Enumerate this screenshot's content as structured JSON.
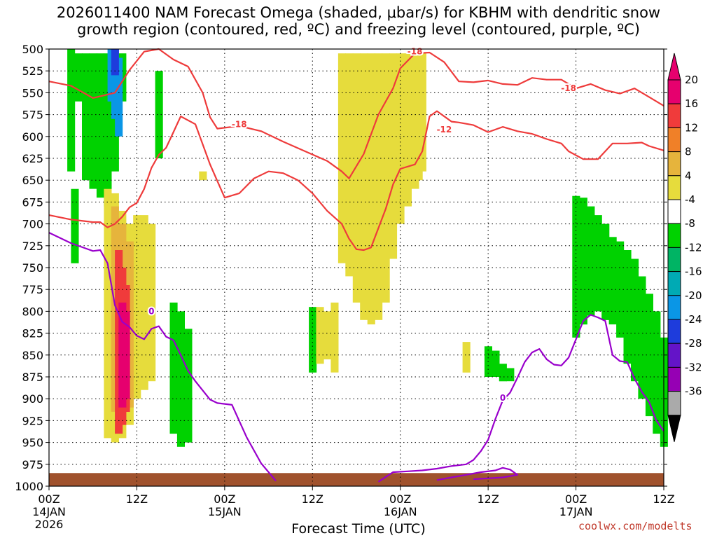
{
  "chart_data": {
    "type": "contour",
    "title_line1": "2026011400 NAM Forecast Omega (shaded, μbar/s) for KBHM with dendritic snow",
    "title_line2": "growth region (contoured, red, ºC) and freezing level (contoured, purple, ºC)",
    "xlabel": "Forecast Time (UTC)",
    "credit": "coolwx.com/modelts",
    "xlim": [
      0,
      84
    ],
    "ylim": [
      500,
      1000
    ],
    "y_ticks": [
      500,
      525,
      550,
      575,
      600,
      625,
      650,
      675,
      700,
      725,
      750,
      775,
      800,
      825,
      850,
      875,
      900,
      925,
      950,
      975,
      1000
    ],
    "x_ticks": [
      {
        "h": 0,
        "line1": "00Z",
        "line2": "14JAN",
        "line3": "2026"
      },
      {
        "h": 12,
        "line1": "12Z",
        "line2": "",
        "line3": ""
      },
      {
        "h": 24,
        "line1": "00Z",
        "line2": "15JAN",
        "line3": ""
      },
      {
        "h": 36,
        "line1": "12Z",
        "line2": "",
        "line3": ""
      },
      {
        "h": 48,
        "line1": "00Z",
        "line2": "16JAN",
        "line3": ""
      },
      {
        "h": 60,
        "line1": "12Z",
        "line2": "",
        "line3": ""
      },
      {
        "h": 72,
        "line1": "00Z",
        "line2": "17JAN",
        "line3": ""
      },
      {
        "h": 84,
        "line1": "12Z",
        "line2": "",
        "line3": ""
      }
    ],
    "colorbar": {
      "labels": [
        "20",
        "16",
        "12",
        "8",
        "4",
        "-4",
        "-8",
        "-12",
        "-16",
        "-20",
        "-24",
        "-28",
        "-32",
        "-36"
      ],
      "colors": {
        "c20": "#e6006e",
        "c16": "#f03b3b",
        "c12": "#f08028",
        "c8": "#e6b43c",
        "c4": "#e6dc3c",
        "c0": "#ffffff",
        "n4": "#00d200",
        "n8": "#00b464",
        "n12": "#00aab4",
        "n16": "#0a96e6",
        "n20": "#1e3cdc",
        "n24": "#6414c8",
        "n28": "#9600b4",
        "n32": "#aaaaaa",
        "n36": "#000000"
      }
    },
    "series": [
      {
        "name": "-18 C",
        "color": "#ee3b3b",
        "label": "-18",
        "points": [
          [
            0,
            537
          ],
          [
            3,
            542
          ],
          [
            6,
            556
          ],
          [
            9,
            550
          ],
          [
            11,
            524
          ],
          [
            13,
            503
          ],
          [
            15,
            500
          ],
          [
            17,
            512
          ],
          [
            19,
            520
          ],
          [
            21,
            550
          ],
          [
            22,
            578
          ],
          [
            23,
            591
          ],
          [
            26,
            588
          ],
          [
            29,
            594
          ],
          [
            32,
            606
          ],
          [
            35,
            617
          ],
          [
            38,
            628
          ],
          [
            40,
            640
          ],
          [
            41,
            648
          ],
          [
            43,
            620
          ],
          [
            45,
            575
          ],
          [
            47,
            545
          ],
          [
            48,
            522
          ],
          [
            50,
            505
          ],
          [
            52,
            504
          ],
          [
            54,
            515
          ],
          [
            56,
            537
          ],
          [
            58,
            538
          ],
          [
            60,
            536
          ],
          [
            62,
            540
          ],
          [
            64,
            541
          ],
          [
            66,
            533
          ],
          [
            68,
            535
          ],
          [
            70,
            535
          ],
          [
            72,
            545
          ],
          [
            74,
            540
          ],
          [
            76,
            547
          ],
          [
            78,
            551
          ],
          [
            80,
            545
          ],
          [
            82,
            555
          ],
          [
            84,
            565
          ]
        ],
        "label_at": [
          [
            26,
            586
          ],
          [
            50,
            503
          ],
          [
            71,
            545
          ]
        ]
      },
      {
        "name": "-12 C",
        "color": "#ee3b3b",
        "label": "-12",
        "points": [
          [
            0,
            690
          ],
          [
            3,
            695
          ],
          [
            6,
            698
          ],
          [
            7,
            698
          ],
          [
            8,
            704
          ],
          [
            9,
            700
          ],
          [
            10,
            692
          ],
          [
            11,
            681
          ],
          [
            12,
            676
          ],
          [
            13,
            660
          ],
          [
            14,
            636
          ],
          [
            15,
            621
          ],
          [
            16,
            613
          ],
          [
            17,
            595
          ],
          [
            18,
            577
          ],
          [
            20,
            586
          ],
          [
            22,
            632
          ],
          [
            23,
            651
          ],
          [
            24,
            670
          ],
          [
            26,
            665
          ],
          [
            28,
            648
          ],
          [
            30,
            640
          ],
          [
            32,
            642
          ],
          [
            34,
            650
          ],
          [
            36,
            665
          ],
          [
            38,
            685
          ],
          [
            40,
            700
          ],
          [
            41,
            717
          ],
          [
            42,
            729
          ],
          [
            43,
            730
          ],
          [
            44,
            727
          ],
          [
            46,
            683
          ],
          [
            47,
            655
          ],
          [
            48,
            637
          ],
          [
            50,
            632
          ],
          [
            51,
            617
          ],
          [
            52,
            577
          ],
          [
            53,
            571
          ],
          [
            55,
            583
          ],
          [
            56,
            584
          ],
          [
            58,
            587
          ],
          [
            60,
            595
          ],
          [
            62,
            589
          ],
          [
            64,
            594
          ],
          [
            66,
            597
          ],
          [
            68,
            603
          ],
          [
            70,
            608
          ],
          [
            71,
            617
          ],
          [
            73,
            626
          ],
          [
            75,
            626
          ],
          [
            77,
            608
          ],
          [
            79,
            608
          ],
          [
            81,
            607
          ],
          [
            82,
            611
          ],
          [
            84,
            616
          ]
        ],
        "label_at": [
          [
            54,
            592
          ]
        ]
      },
      {
        "name": "0 C",
        "color": "#9900cc",
        "label": "0",
        "points": [
          [
            0,
            710
          ],
          [
            3,
            722
          ],
          [
            6,
            731
          ],
          [
            7,
            730
          ],
          [
            8,
            745
          ],
          [
            9,
            793
          ],
          [
            10,
            812
          ],
          [
            11,
            818
          ],
          [
            12,
            828
          ],
          [
            13,
            832
          ],
          [
            14,
            820
          ],
          [
            15,
            817
          ],
          [
            16,
            829
          ],
          [
            17,
            833
          ],
          [
            18,
            850
          ],
          [
            19,
            868
          ],
          [
            20,
            880
          ],
          [
            22,
            901
          ],
          [
            23,
            905
          ],
          [
            25,
            907
          ],
          [
            27,
            944
          ],
          [
            29,
            974
          ],
          [
            30,
            984
          ],
          [
            31,
            994
          ]
        ],
        "label_at": [
          [
            14,
            800
          ]
        ]
      },
      {
        "name": "0 C (late)",
        "color": "#9900cc",
        "label": "0",
        "points": [
          [
            45,
            995
          ],
          [
            47,
            984
          ],
          [
            49,
            983
          ],
          [
            51,
            982
          ],
          [
            53,
            980
          ],
          [
            55,
            977
          ],
          [
            57,
            975
          ],
          [
            58,
            970
          ],
          [
            59,
            960
          ],
          [
            60,
            947
          ],
          [
            61,
            923
          ],
          [
            62,
            902
          ],
          [
            63,
            893
          ],
          [
            64,
            876
          ],
          [
            65,
            858
          ],
          [
            66,
            847
          ],
          [
            67,
            843
          ],
          [
            68,
            855
          ],
          [
            69,
            861
          ],
          [
            70,
            862
          ],
          [
            71,
            853
          ],
          [
            72,
            832
          ],
          [
            73,
            811
          ],
          [
            74,
            804
          ],
          [
            75,
            807
          ],
          [
            76,
            811
          ],
          [
            77,
            850
          ],
          [
            78,
            857
          ],
          [
            79,
            858
          ],
          [
            80,
            877
          ],
          [
            81,
            892
          ],
          [
            82,
            904
          ],
          [
            83,
            925
          ],
          [
            84,
            937
          ]
        ],
        "label_at": [
          [
            62,
            899
          ]
        ]
      },
      {
        "name": "0 C (low)",
        "color": "#9900cc",
        "label": "0",
        "points": [
          [
            53,
            993
          ],
          [
            55,
            990
          ],
          [
            57,
            987
          ],
          [
            59,
            984
          ],
          [
            61,
            982
          ],
          [
            62,
            979
          ],
          [
            63,
            981
          ],
          [
            64,
            987
          ],
          [
            62,
            990
          ],
          [
            60,
            991
          ],
          [
            58,
            992
          ]
        ],
        "label_at": []
      }
    ],
    "omega_regions": [
      {
        "level": "n4",
        "cells": [
          [
            3,
            500,
            640
          ],
          [
            3.5,
            660,
            745
          ],
          [
            4,
            505,
            560
          ],
          [
            5,
            505,
            650
          ],
          [
            6,
            505,
            660
          ],
          [
            7,
            505,
            670
          ],
          [
            8,
            505,
            680
          ],
          [
            9,
            505,
            640
          ],
          [
            10,
            505,
            560
          ],
          [
            15,
            525,
            625
          ],
          [
            17,
            790,
            940
          ],
          [
            18,
            800,
            955
          ],
          [
            19,
            820,
            950
          ],
          [
            36,
            795,
            870
          ],
          [
            60,
            840,
            875
          ],
          [
            61,
            845,
            875
          ],
          [
            62,
            860,
            880
          ],
          [
            63,
            865,
            880
          ],
          [
            72,
            668,
            830
          ],
          [
            73,
            670,
            815
          ],
          [
            74,
            680,
            805
          ],
          [
            75,
            690,
            800
          ],
          [
            76,
            700,
            810
          ],
          [
            77,
            715,
            815
          ],
          [
            78,
            720,
            830
          ],
          [
            79,
            730,
            860
          ],
          [
            80,
            740,
            880
          ],
          [
            81,
            760,
            900
          ],
          [
            82,
            780,
            920
          ],
          [
            83,
            800,
            940
          ],
          [
            84,
            830,
            955
          ]
        ]
      },
      {
        "level": "c4",
        "cells": [
          [
            8,
            660,
            945
          ],
          [
            9,
            665,
            950
          ],
          [
            10,
            685,
            945
          ],
          [
            11,
            700,
            930
          ],
          [
            12,
            690,
            900
          ],
          [
            13,
            690,
            890
          ],
          [
            14,
            700,
            880
          ],
          [
            21,
            640,
            650
          ],
          [
            40,
            505,
            745
          ],
          [
            41,
            505,
            760
          ],
          [
            42,
            505,
            790
          ],
          [
            43,
            505,
            810
          ],
          [
            44,
            505,
            815
          ],
          [
            45,
            505,
            810
          ],
          [
            46,
            505,
            790
          ],
          [
            47,
            505,
            740
          ],
          [
            48,
            505,
            700
          ],
          [
            49,
            505,
            680
          ],
          [
            50,
            505,
            660
          ],
          [
            50.5,
            505,
            650
          ],
          [
            51,
            505,
            640
          ],
          [
            37,
            795,
            860
          ],
          [
            38,
            800,
            855
          ],
          [
            39,
            790,
            870
          ],
          [
            57,
            835,
            870
          ]
        ]
      },
      {
        "level": "c8",
        "cells": [
          [
            9,
            680,
            915
          ],
          [
            10,
            700,
            925
          ],
          [
            11,
            720,
            910
          ]
        ]
      },
      {
        "level": "c16",
        "cells": [
          [
            9.5,
            730,
            940
          ],
          [
            10,
            750,
            930
          ],
          [
            10.5,
            770,
            915
          ]
        ]
      },
      {
        "level": "c20",
        "cells": [
          [
            10,
            790,
            910
          ],
          [
            10.5,
            800,
            900
          ]
        ]
      },
      {
        "level": "n16",
        "cells": [
          [
            8.5,
            500,
            560
          ],
          [
            9,
            500,
            580
          ],
          [
            9.5,
            510,
            600
          ]
        ]
      },
      {
        "level": "n20",
        "cells": [
          [
            9,
            500,
            530
          ]
        ]
      }
    ]
  }
}
